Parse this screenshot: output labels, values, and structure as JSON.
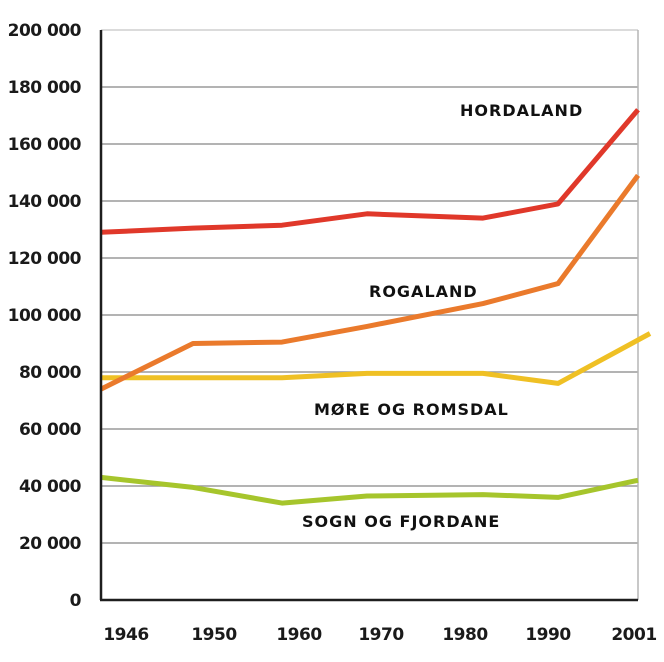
{
  "chart_data": {
    "type": "line",
    "title": "",
    "xlabel": "",
    "ylabel": "",
    "x": [
      "1946",
      "1950",
      "1960",
      "1970",
      "1980",
      "1990",
      "2001"
    ],
    "ylim": [
      0,
      200000
    ],
    "yticks": [
      "0",
      "20 000",
      "40 000",
      "60 000",
      "80 000",
      "100 000",
      "120 000",
      "140 000",
      "160 000",
      "180 000",
      "200 000"
    ],
    "grid": true,
    "legend": "inline labels",
    "series": [
      {
        "name": "HORDALAND",
        "color": "#e0382a",
        "values": [
          129000,
          130500,
          131500,
          135500,
          134000,
          139000,
          172000
        ]
      },
      {
        "name": "ROGALAND",
        "color": "#ea7a2c",
        "values": [
          74000,
          90000,
          90500,
          96000,
          104000,
          111000,
          149000
        ]
      },
      {
        "name": "MØRE OG ROMSDAL",
        "color": "#efc024",
        "values": [
          78000,
          78000,
          78000,
          79500,
          79500,
          76000,
          93500
        ]
      },
      {
        "name": "SOGN OG FJORDANE",
        "color": "#a6c52c",
        "values": [
          43000,
          39500,
          34000,
          36500,
          37000,
          36000,
          42000
        ]
      }
    ]
  },
  "labels": {
    "hordaland": "HORDALAND",
    "rogaland": "ROGALAND",
    "more": "MØRE OG ROMSDAL",
    "sogn": "SOGN OG FJORDANE"
  }
}
